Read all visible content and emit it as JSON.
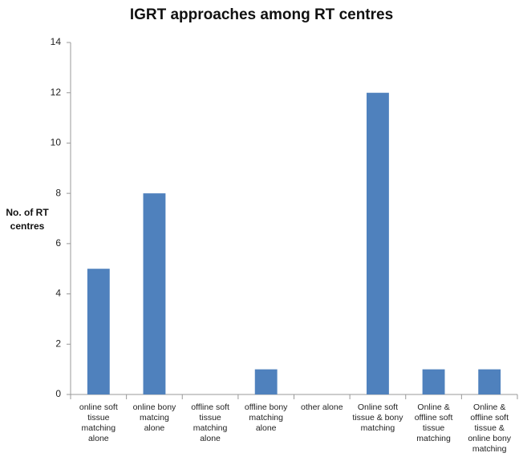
{
  "chart_data": {
    "type": "bar",
    "title": "IGRT approaches among RT centres",
    "y_label": "No. of RT centres",
    "categories": [
      "online soft tissue matching alone",
      "online bony matcing alone",
      "offline soft tissue matching alone",
      "offline bony matching alone",
      "other alone",
      "Online soft tissue & bony matching",
      "Online & offline soft tissue matching",
      "Online & offline soft tissue & online bony matching"
    ],
    "values": [
      5,
      8,
      0,
      1,
      0,
      12,
      1,
      1
    ],
    "color": "#4f81bd",
    "ylim": [
      0,
      14
    ],
    "yticks": [
      0,
      2,
      4,
      6,
      8,
      10,
      12,
      14
    ],
    "grid": false
  }
}
